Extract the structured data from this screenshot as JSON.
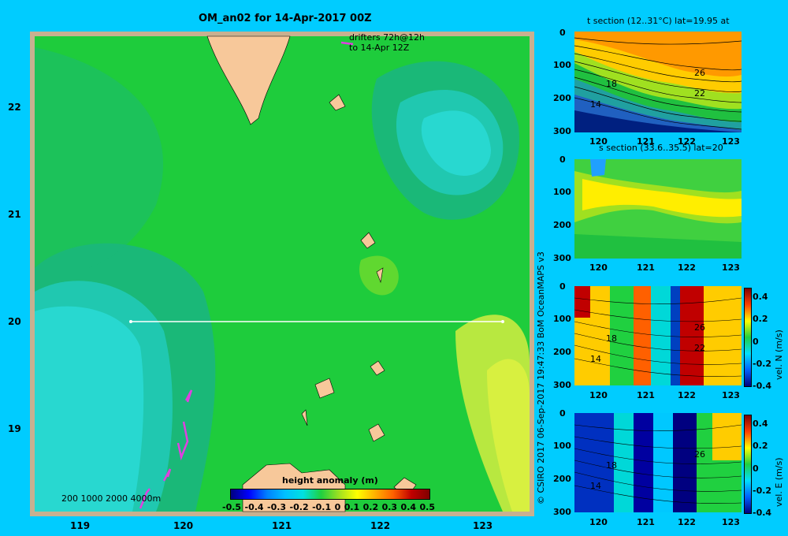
{
  "map": {
    "title": "OM_an02 for 14-Apr-2017 00Z",
    "drifters_line1": "drifters 72h@12h",
    "drifters_line2": "to 14-Apr 12Z",
    "lat_ticks": [
      "22",
      "21",
      "20",
      "19"
    ],
    "lon_ticks": [
      "119",
      "120",
      "121",
      "122",
      "123"
    ],
    "depth_legend": "200 1000 2000 4000m",
    "colorbar_title": "height anomaly (m)",
    "colorbar_ticks": [
      "-0.5",
      "-0.4",
      "-0.3",
      "-0.2",
      "-0.1",
      "0",
      "0.1",
      "0.2",
      "0.3",
      "0.4",
      "0.5"
    ],
    "section_line": {
      "lat": 20,
      "lon_start": 119.5,
      "lon_end": 123.2
    }
  },
  "credit": "© CSIRO 2017   06-Sep-2017 19:47:33 BoM OceanMAPS v3",
  "panels": [
    {
      "title": "t section (12..31°C) lat=19.95 at",
      "y_ticks": [
        "0",
        "100",
        "200",
        "300"
      ],
      "x_ticks": [
        "120",
        "121",
        "122",
        "123"
      ],
      "contour_labels": [
        "18",
        "14",
        "26",
        "22"
      ]
    },
    {
      "title": "s section (33.6..35.5) lat=20",
      "y_ticks": [
        "0",
        "100",
        "200",
        "300"
      ],
      "x_ticks": [
        "120",
        "121",
        "122",
        "123"
      ]
    },
    {
      "title": "",
      "y_ticks": [
        "0",
        "100",
        "200",
        "300"
      ],
      "x_ticks": [
        "120",
        "121",
        "122",
        "123"
      ],
      "contour_labels": [
        "18",
        "14",
        "26",
        "22"
      ],
      "cbar_ticks": [
        "0.4",
        "0.2",
        "0",
        "-0.2",
        "-0.4"
      ],
      "cbar_label": "vel. N (m/s)"
    },
    {
      "title": "",
      "y_ticks": [
        "0",
        "100",
        "200",
        "300"
      ],
      "x_ticks": [
        "120",
        "121",
        "122",
        "123"
      ],
      "contour_labels": [
        "18",
        "14",
        "26"
      ],
      "cbar_ticks": [
        "0.4",
        "0.2",
        "0",
        "-0.2",
        "-0.4"
      ],
      "cbar_label": "vel. E (m/s)"
    }
  ],
  "colors": {
    "background": "#00ccff",
    "land": "#f7c89a",
    "frame": "#c8b090",
    "green": "#1ecc3c",
    "section_line": "#ffffff",
    "drifter": "#e040e0"
  }
}
